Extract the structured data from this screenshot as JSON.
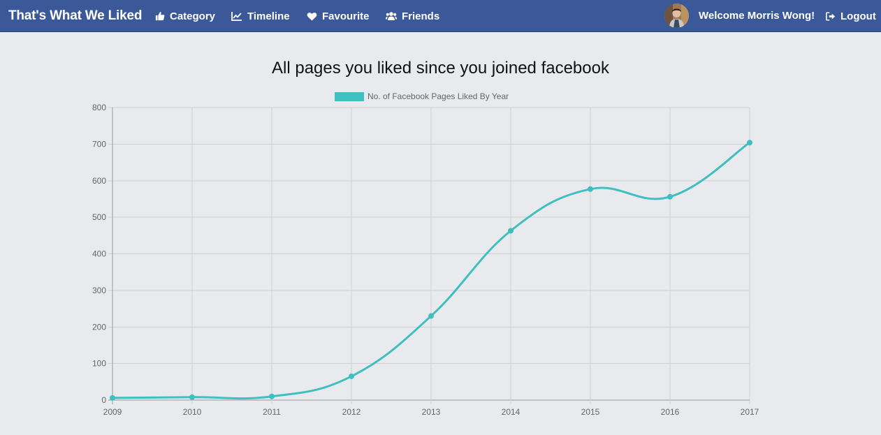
{
  "app": {
    "brand": "That's What We Liked"
  },
  "nav": {
    "category": {
      "label": "Category",
      "icon": "thumbs-up-icon"
    },
    "timeline": {
      "label": "Timeline",
      "icon": "line-chart-icon"
    },
    "favourite": {
      "label": "Favourite",
      "icon": "heart-icon"
    },
    "friends": {
      "label": "Friends",
      "icon": "users-icon"
    }
  },
  "user": {
    "welcome": "Welcome Morris Wong!",
    "logout": "Logout",
    "logout_icon": "logout-icon"
  },
  "colors": {
    "navbar": "#3b5998",
    "background": "#e9eaed",
    "series": "#3fbfbf"
  },
  "chart_data": {
    "type": "line",
    "title": "All pages you liked since you joined facebook",
    "legend_position": "top",
    "grid": true,
    "x": [
      "2009",
      "2010",
      "2011",
      "2012",
      "2013",
      "2014",
      "2015",
      "2016",
      "2017"
    ],
    "series": [
      {
        "name": "No. of Facebook Pages Liked By Year",
        "values": [
          6,
          8,
          10,
          65,
          230,
          463,
          577,
          556,
          704
        ]
      }
    ],
    "ylim": [
      0,
      800
    ],
    "yticks": [
      "0",
      "100",
      "200",
      "300",
      "400",
      "500",
      "600",
      "700",
      "800"
    ],
    "xlabel": "",
    "ylabel": ""
  }
}
